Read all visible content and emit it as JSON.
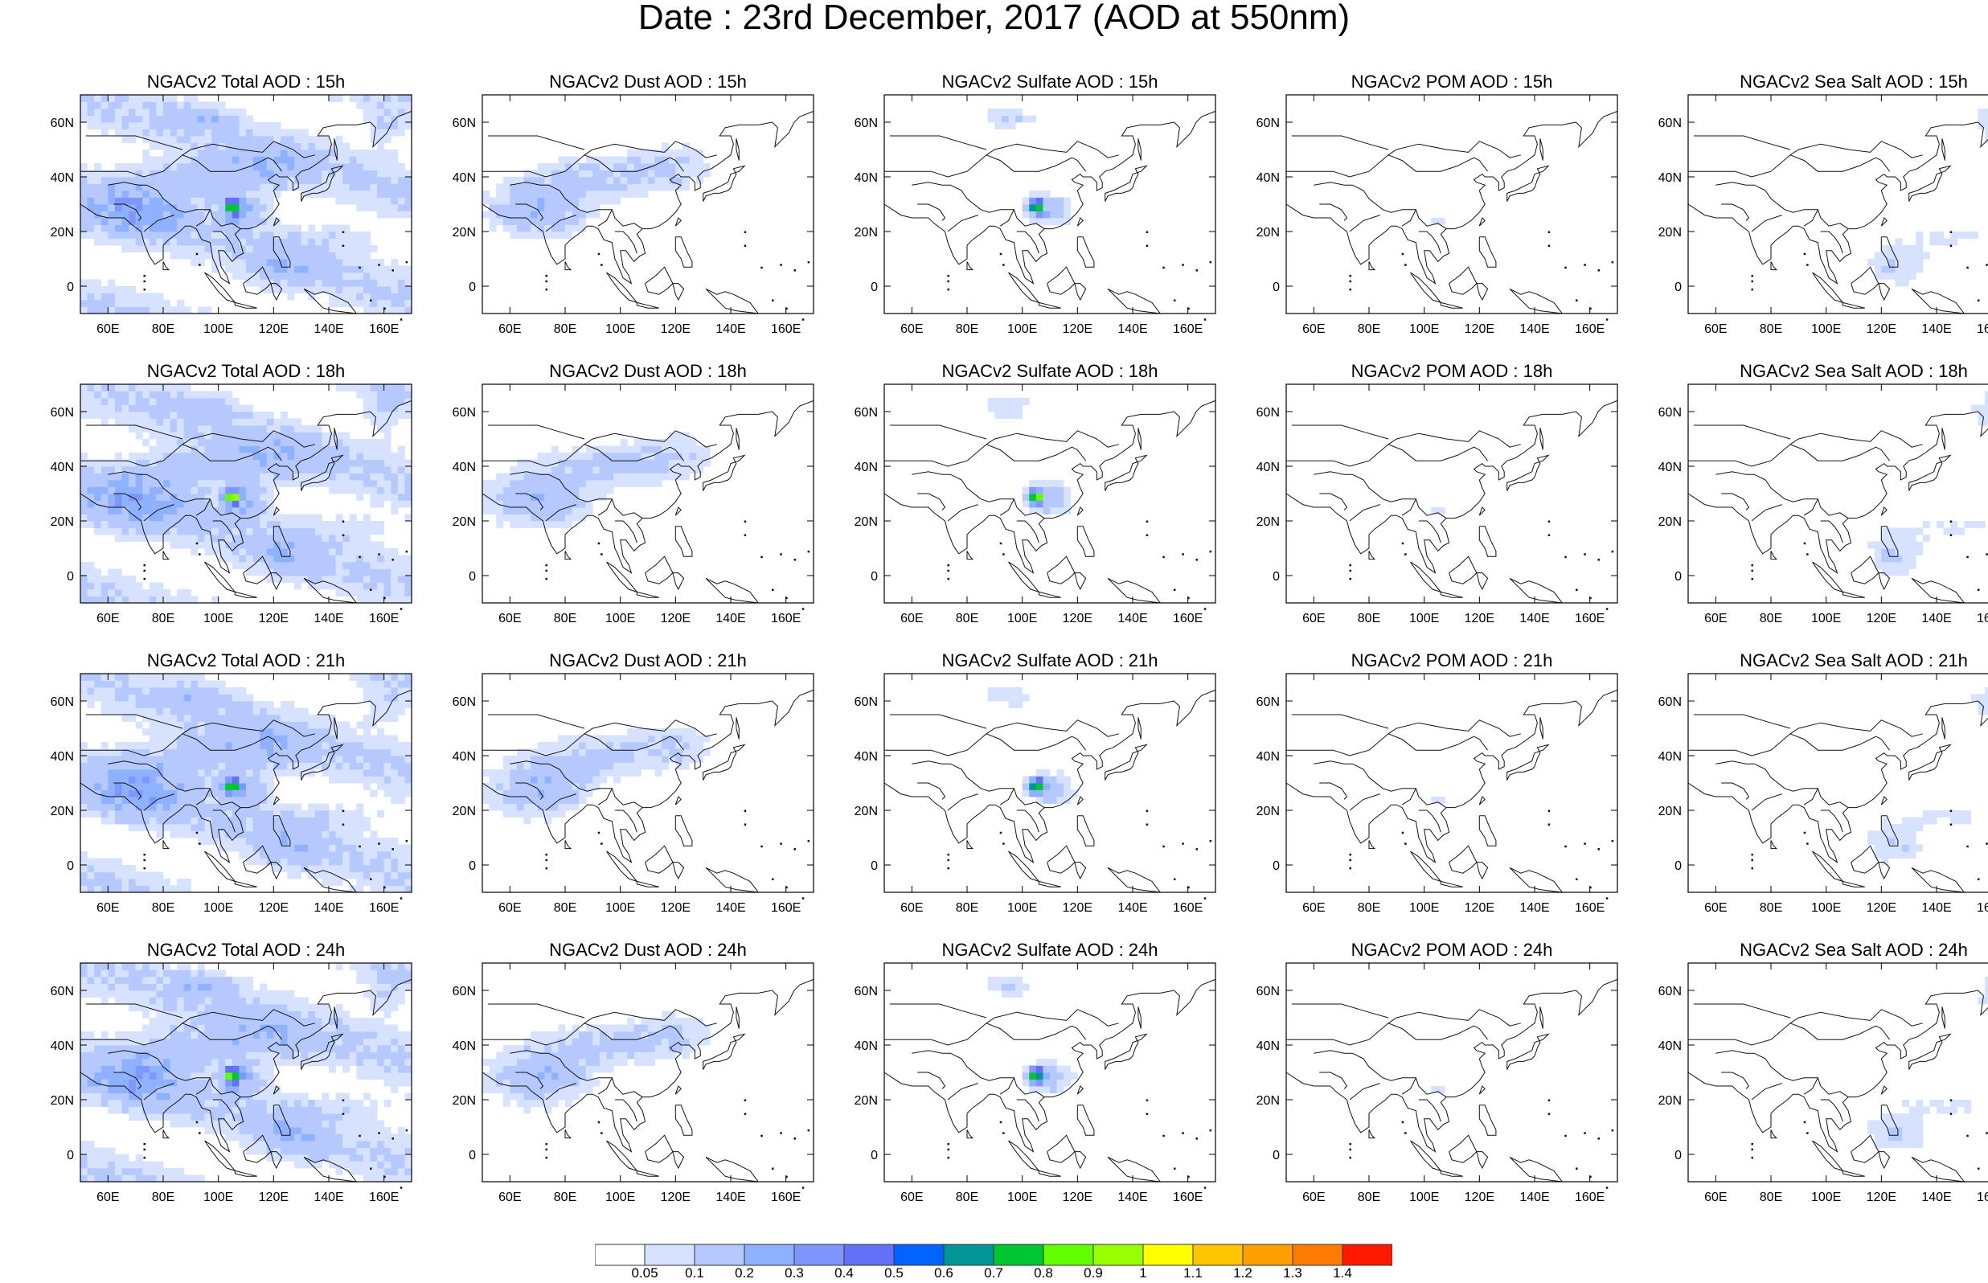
{
  "title": "Date : 23rd December, 2017 (AOD at 550nm)",
  "axes": {
    "lon_labels": [
      "60E",
      "80E",
      "100E",
      "120E",
      "140E",
      "160E"
    ],
    "lon_values": [
      60,
      80,
      100,
      120,
      140,
      160
    ],
    "lat_labels": [
      "60N",
      "40N",
      "20N",
      "0"
    ],
    "lat_values": [
      60,
      40,
      20,
      0
    ],
    "lon_range": [
      50,
      170
    ],
    "lat_range": [
      -10,
      70
    ]
  },
  "panels": [
    {
      "title": "NGACv2 Total AOD : 15h",
      "species": "total",
      "hour": 15
    },
    {
      "title": "NGACv2 Dust AOD : 15h",
      "species": "dust",
      "hour": 15
    },
    {
      "title": "NGACv2 Sulfate AOD : 15h",
      "species": "sulfate",
      "hour": 15
    },
    {
      "title": "NGACv2 POM AOD : 15h",
      "species": "pom",
      "hour": 15
    },
    {
      "title": "NGACv2 Sea Salt AOD : 15h",
      "species": "seasalt",
      "hour": 15
    },
    {
      "title": "NGACv2 Total AOD : 18h",
      "species": "total",
      "hour": 18
    },
    {
      "title": "NGACv2 Dust AOD : 18h",
      "species": "dust",
      "hour": 18
    },
    {
      "title": "NGACv2 Sulfate AOD : 18h",
      "species": "sulfate",
      "hour": 18
    },
    {
      "title": "NGACv2 POM AOD : 18h",
      "species": "pom",
      "hour": 18
    },
    {
      "title": "NGACv2 Sea Salt AOD : 18h",
      "species": "seasalt",
      "hour": 18
    },
    {
      "title": "NGACv2 Total AOD : 21h",
      "species": "total",
      "hour": 21
    },
    {
      "title": "NGACv2 Dust AOD : 21h",
      "species": "dust",
      "hour": 21
    },
    {
      "title": "NGACv2 Sulfate AOD : 21h",
      "species": "sulfate",
      "hour": 21
    },
    {
      "title": "NGACv2 POM AOD : 21h",
      "species": "pom",
      "hour": 21
    },
    {
      "title": "NGACv2 Sea Salt AOD : 21h",
      "species": "seasalt",
      "hour": 21
    },
    {
      "title": "NGACv2 Total AOD : 24h",
      "species": "total",
      "hour": 24
    },
    {
      "title": "NGACv2 Dust AOD : 24h",
      "species": "dust",
      "hour": 24
    },
    {
      "title": "NGACv2 Sulfate AOD : 24h",
      "species": "sulfate",
      "hour": 24
    },
    {
      "title": "NGACv2 POM AOD : 24h",
      "species": "pom",
      "hour": 24
    },
    {
      "title": "NGACv2 Sea Salt  AOD : 24h",
      "species": "seasalt",
      "hour": 24
    }
  ],
  "colorbar": {
    "levels": [
      "0.05",
      "0.1",
      "0.2",
      "0.3",
      "0.4",
      "0.5",
      "0.6",
      "0.7",
      "0.8",
      "0.9",
      "1",
      "1.1",
      "1.2",
      "1.3",
      "1.4"
    ],
    "colors": [
      "#ffffff",
      "#d6e2ff",
      "#b5c9ff",
      "#8eb2ff",
      "#7f96ff",
      "#6370f8",
      "#0063ff",
      "#009696",
      "#00c633",
      "#63ff00",
      "#96ff00",
      "#ffff00",
      "#ffc600",
      "#ffa000",
      "#ff7c00",
      "#ff1900"
    ]
  }
}
